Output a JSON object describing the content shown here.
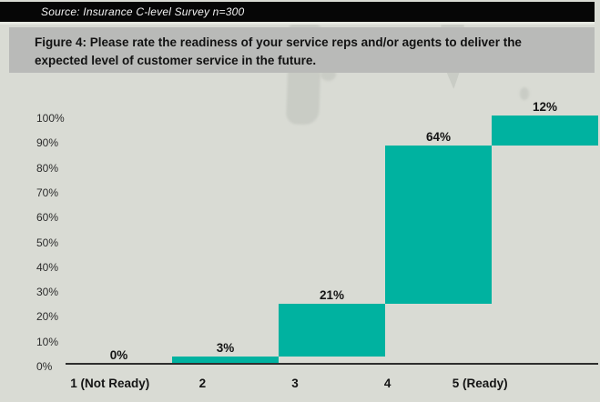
{
  "source_bar": {
    "text": "Source: Insurance C-level Survey n=300"
  },
  "title": {
    "line1": "Figure 4: Please rate the readiness of your service reps and/or agents to deliver the",
    "line2": "expected level of customer service in the future."
  },
  "chart_data": {
    "type": "bar",
    "subtype": "waterfall-cumulative",
    "title": "Figure 4: Please rate the readiness of your service reps and/or agents to deliver the expected level of customer service in the future.",
    "categories": [
      "1 (Not Ready)",
      "2",
      "3",
      "4",
      "5 (Ready)"
    ],
    "values": [
      0,
      3,
      21,
      64,
      12
    ],
    "cumulative": [
      0,
      3,
      24,
      88,
      100
    ],
    "data_labels": [
      "0%",
      "3%",
      "21%",
      "64%",
      "12%"
    ],
    "y_ticks": [
      "0%",
      "10%",
      "20%",
      "30%",
      "40%",
      "50%",
      "60%",
      "70%",
      "80%",
      "90%",
      "100%"
    ],
    "ylim": [
      0,
      100
    ],
    "xlabel": "",
    "ylabel": "",
    "grid": false,
    "legend": false,
    "bar_color": "#00b2a0"
  },
  "colors": {
    "bar": "#00b2a0",
    "page_background": "#d9dbd4",
    "title_band": "#b9bab8",
    "source_bar": "#060606",
    "axis": "#2e2e2e"
  }
}
